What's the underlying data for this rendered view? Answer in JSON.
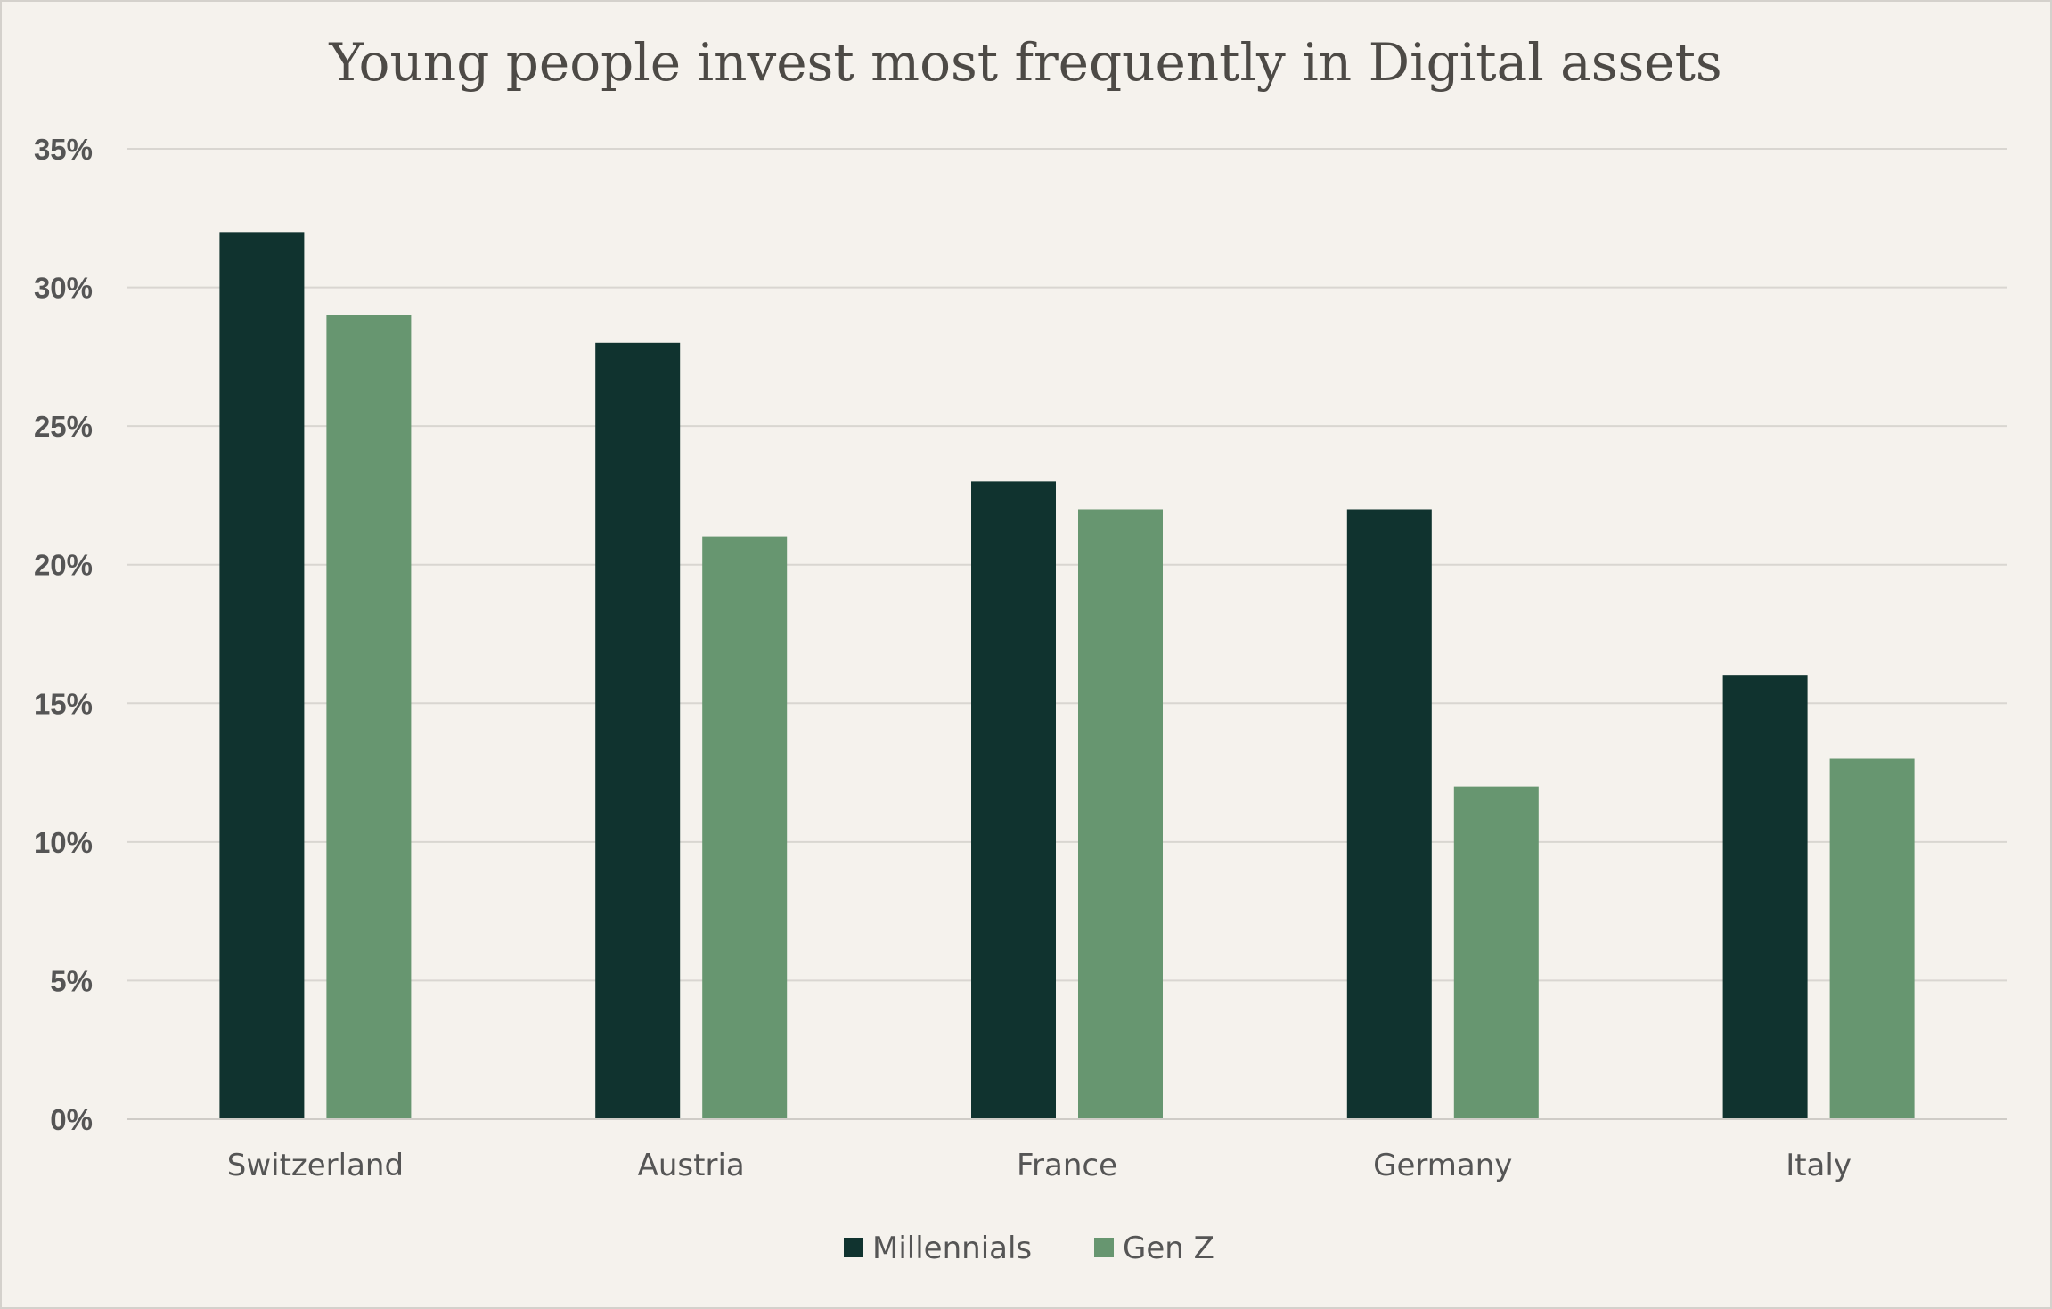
{
  "chart_data": {
    "type": "bar",
    "title": "Young people invest most frequently in Digital assets",
    "categories": [
      "Switzerland",
      "Austria",
      "France",
      "Germany",
      "Italy"
    ],
    "series": [
      {
        "name": "Millennials",
        "values": [
          32,
          28,
          23,
          22,
          16
        ],
        "color": "#10332f"
      },
      {
        "name": "Gen Z",
        "values": [
          29,
          21,
          22,
          12,
          13
        ],
        "color": "#679670"
      }
    ],
    "y_ticks": [
      "0%",
      "5%",
      "10%",
      "15%",
      "20%",
      "25%",
      "30%",
      "35%"
    ],
    "ylim": [
      0,
      35
    ],
    "y_tick_step": 5,
    "grid": true,
    "legend_position": "bottom",
    "xlabel": "",
    "ylabel": "",
    "background": "#f5f2ed"
  }
}
